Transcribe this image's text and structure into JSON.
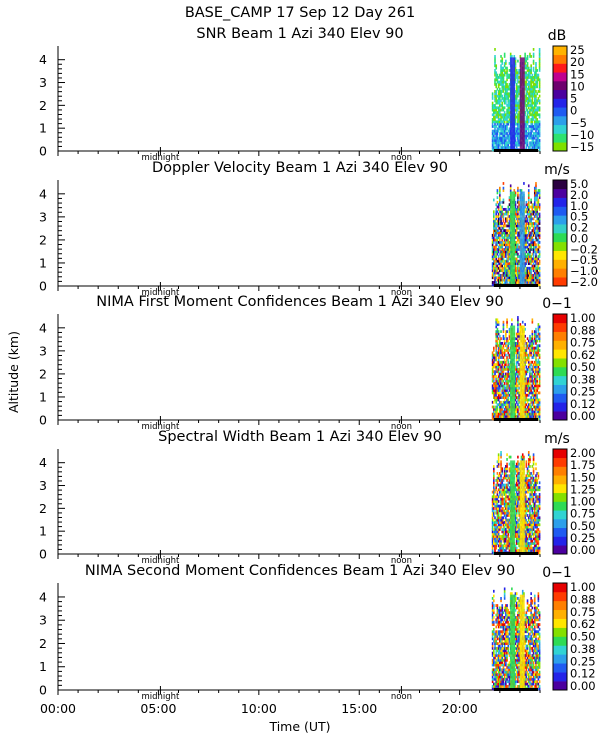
{
  "header": {
    "line1": "BASE_CAMP  17 Sep 12 Day 261"
  },
  "chart_data": {
    "type": "heatmap",
    "ylabel": "Altitude (km)",
    "xlabel": "Time (UT)",
    "ylim": [
      0,
      4.6
    ],
    "xlim": [
      0,
      24
    ],
    "x_ticks": [
      "00:00",
      "05:00",
      "10:00",
      "15:00",
      "20:00"
    ],
    "x_tick_values": [
      0,
      5,
      10,
      15,
      20
    ],
    "markers": [
      {
        "label": "midnight",
        "time": 5.1
      },
      {
        "label": "noon",
        "time": 17.1
      }
    ],
    "data_window": {
      "start": 21.6,
      "end": 24.0,
      "max_altitude_km": 4.5
    },
    "panels": [
      {
        "title": "SNR Beam 1 Azi 340 Elev 90",
        "unit": "dB",
        "colors": [
          "#7fe000",
          "#2ee26f",
          "#31d3d3",
          "#2c9fea",
          "#1f5bf1",
          "#2323e8",
          "#4b009f",
          "#6e006e",
          "#c0008f",
          "#ff1a1a",
          "#ff7a00",
          "#ffb300"
        ],
        "labels": [
          "−15",
          "−10",
          "−5",
          "0",
          "5",
          "10",
          "15",
          "20",
          "25"
        ]
      },
      {
        "title": "Doppler Velocity Beam 1 Azi 340 Elev 90",
        "unit": "m/s",
        "colors": [
          "#ff3b00",
          "#ff7f00",
          "#ffb000",
          "#ffe600",
          "#84e000",
          "#2edb54",
          "#35d0c8",
          "#2c9fea",
          "#1f5bf1",
          "#2323e8",
          "#4b009f",
          "#2a0040"
        ],
        "labels": [
          "−2.0",
          "−1.0",
          "−0.5",
          "−0.2",
          "0.0",
          "0.2",
          "0.5",
          "1.0",
          "2.0",
          "5.0"
        ]
      },
      {
        "title": "NIMA First Moment Confidences Beam 1 Azi 340 Elev 90",
        "unit": "0−1",
        "colors": [
          "#4b009f",
          "#2323e8",
          "#1f5bf1",
          "#2c9fea",
          "#31d3d3",
          "#2edb54",
          "#84e000",
          "#ffe600",
          "#ffb000",
          "#ff7f00",
          "#ff3b00",
          "#e60000"
        ],
        "labels": [
          "0.00",
          "0.12",
          "0.25",
          "0.38",
          "0.50",
          "0.62",
          "0.75",
          "0.88",
          "1.00"
        ]
      },
      {
        "title": "Spectral Width Beam 1 Azi 340 Elev 90",
        "unit": "m/s",
        "colors": [
          "#4b009f",
          "#2323e8",
          "#1f5bf1",
          "#2c9fea",
          "#31d3d3",
          "#2edb54",
          "#84e000",
          "#ffe600",
          "#ffb000",
          "#ff7f00",
          "#ff3b00",
          "#e60000"
        ],
        "labels": [
          "0.00",
          "0.25",
          "0.50",
          "0.75",
          "1.00",
          "1.25",
          "1.50",
          "1.75",
          "2.00"
        ]
      },
      {
        "title": "NIMA Second Moment Confidences Beam 1 Azi 340 Elev 90",
        "unit": "0−1",
        "colors": [
          "#4b009f",
          "#2323e8",
          "#1f5bf1",
          "#2c9fea",
          "#31d3d3",
          "#2edb54",
          "#84e000",
          "#ffe600",
          "#ffb000",
          "#ff7f00",
          "#ff3b00",
          "#e60000"
        ],
        "labels": [
          "0.00",
          "0.12",
          "0.25",
          "0.38",
          "0.50",
          "0.62",
          "0.75",
          "0.88",
          "1.00"
        ]
      }
    ]
  }
}
